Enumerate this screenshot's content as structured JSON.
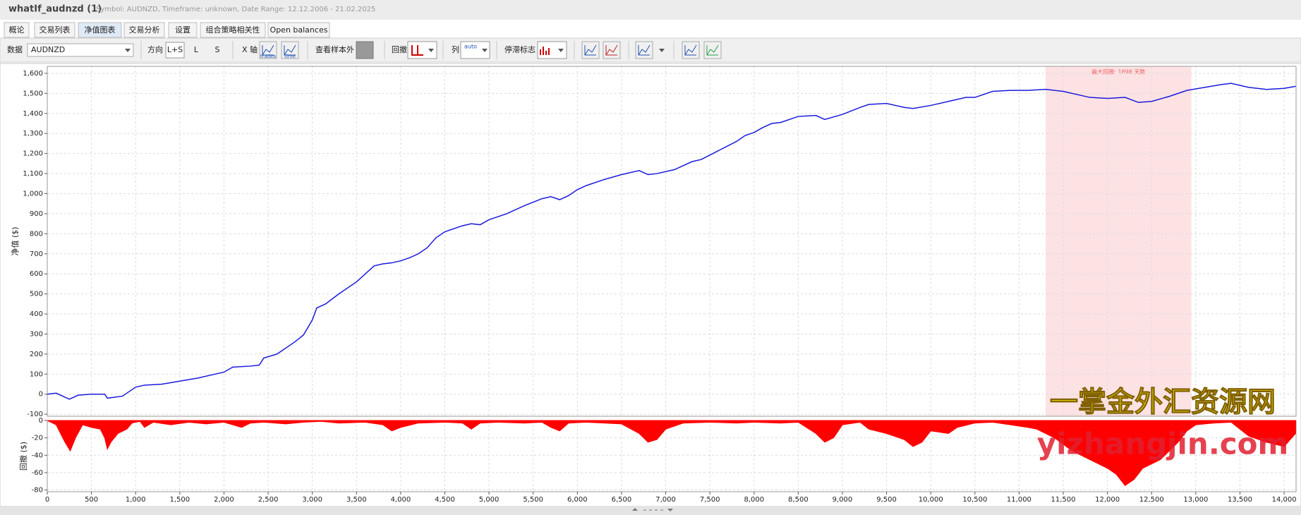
{
  "header": {
    "title": "whatIf_audnzd (1)",
    "subtitle": "Symbol: AUDNZD, Timeframe: unknown, Date Range: 12.12.2006 - 21.02.2025"
  },
  "tabs": [
    "概论",
    "交易列表",
    "净值图表",
    "交易分析",
    "设置",
    "组合策略相关性",
    "Open balances"
  ],
  "toolbar": {
    "data_label": "数据",
    "symbol": "AUDNZD",
    "direction_label": "方向",
    "directions": [
      "L+S",
      "L",
      "S"
    ],
    "x_axis_label": "X 轴",
    "x_modes": [
      "trades",
      "time"
    ],
    "out_of_sample": "查看样本外",
    "drawdown_label": "回撤",
    "column_label": "列",
    "column_mode": "auto",
    "stagnation_label": "停滞标志"
  },
  "watermark": {
    "line1": "一掌金外汇资源网",
    "line2": "yizhangjin.com"
  },
  "chart_data": [
    {
      "type": "line",
      "y_label": "净值 ($)",
      "color": "#1a1adc",
      "grid": true,
      "xlim": [
        0,
        14135
      ],
      "ylim": [
        -110,
        1635
      ],
      "yticks": [
        -100,
        0,
        100,
        200,
        300,
        400,
        500,
        600,
        700,
        800,
        900,
        {
          "value": 1000,
          "label": "1,000"
        },
        {
          "value": 1100,
          "label": "1,100"
        },
        {
          "value": 1200,
          "label": "1,200"
        },
        {
          "value": 1300,
          "label": "1,300"
        },
        {
          "value": 1400,
          "label": "1,400"
        },
        {
          "value": 1500,
          "label": "1,500"
        },
        {
          "value": 1600,
          "label": "1,600"
        }
      ],
      "highlight": {
        "xlim": [
          11300,
          12950
        ],
        "label": "最大回撤: 1898 天数",
        "color": "#fde2e4"
      },
      "x": [
        0,
        100,
        250,
        350,
        500,
        650,
        680,
        850,
        1000,
        1100,
        1300,
        1500,
        1700,
        1900,
        2000,
        2100,
        2300,
        2400,
        2450,
        2600,
        2800,
        2900,
        3000,
        3050,
        3150,
        3300,
        3500,
        3600,
        3700,
        3800,
        3900,
        4000,
        4100,
        4200,
        4300,
        4400,
        4500,
        4700,
        4800,
        4900,
        5000,
        5200,
        5400,
        5600,
        5700,
        5800,
        5900,
        6000,
        6100,
        6300,
        6500,
        6700,
        6800,
        6900,
        7100,
        7300,
        7400,
        7600,
        7800,
        7900,
        8000,
        8100,
        8200,
        8300,
        8500,
        8700,
        8800,
        9000,
        9200,
        9300,
        9500,
        9700,
        9800,
        10000,
        10200,
        10400,
        10500,
        10700,
        10900,
        11100,
        11300,
        11500,
        11800,
        12000,
        12200,
        12350,
        12500,
        12700,
        12900,
        13100,
        13300,
        13400,
        13600,
        13800,
        14000,
        14130
      ],
      "values": [
        0,
        5,
        -25,
        -5,
        0,
        0,
        -20,
        -10,
        35,
        45,
        50,
        65,
        80,
        100,
        110,
        135,
        140,
        145,
        180,
        200,
        260,
        295,
        370,
        430,
        450,
        500,
        560,
        600,
        640,
        650,
        655,
        665,
        680,
        700,
        730,
        780,
        810,
        840,
        850,
        845,
        870,
        900,
        940,
        975,
        985,
        970,
        990,
        1020,
        1040,
        1070,
        1095,
        1115,
        1095,
        1100,
        1120,
        1160,
        1170,
        1215,
        1260,
        1290,
        1305,
        1330,
        1350,
        1355,
        1385,
        1390,
        1370,
        1395,
        1430,
        1445,
        1450,
        1430,
        1425,
        1440,
        1460,
        1480,
        1480,
        1510,
        1515,
        1515,
        1520,
        1510,
        1480,
        1475,
        1480,
        1455,
        1460,
        1485,
        1515,
        1530,
        1545,
        1550,
        1530,
        1520,
        1525,
        1535
      ]
    },
    {
      "type": "area",
      "y_label": "回撤 ($)",
      "color": "#ff0000",
      "grid": true,
      "xlim": [
        0,
        14135
      ],
      "ylim": [
        -82,
        0
      ],
      "yticks": [
        0,
        -20,
        -40,
        -60,
        -80
      ],
      "xticks": [
        0,
        500,
        {
          "value": 1000,
          "label": "1,000"
        },
        {
          "value": 1500,
          "label": "1,500"
        },
        {
          "value": 2000,
          "label": "2,000"
        },
        {
          "value": 2500,
          "label": "2,500"
        },
        {
          "value": 3000,
          "label": "3,000"
        },
        {
          "value": 3500,
          "label": "3,500"
        },
        {
          "value": 4000,
          "label": "4,000"
        },
        {
          "value": 4500,
          "label": "4,500"
        },
        {
          "value": 5000,
          "label": "5,000"
        },
        {
          "value": 5500,
          "label": "5,500"
        },
        {
          "value": 6000,
          "label": "6,000"
        },
        {
          "value": 6500,
          "label": "6,500"
        },
        {
          "value": 7000,
          "label": "7,000"
        },
        {
          "value": 7500,
          "label": "7,500"
        },
        {
          "value": 8000,
          "label": "8,000"
        },
        {
          "value": 8500,
          "label": "8,500"
        },
        {
          "value": 9000,
          "label": "9,000"
        },
        {
          "value": 9500,
          "label": "9,500"
        },
        {
          "value": 10000,
          "label": "10,000"
        },
        {
          "value": 10500,
          "label": "10,500"
        },
        {
          "value": 11000,
          "label": "11,000"
        },
        {
          "value": 11500,
          "label": "11,500"
        },
        {
          "value": 12000,
          "label": "12,000"
        },
        {
          "value": 12500,
          "label": "12,500"
        },
        {
          "value": 13000,
          "label": "13,000"
        },
        {
          "value": 13500,
          "label": "13,500"
        },
        {
          "value": 14000,
          "label": "14,000"
        }
      ],
      "x": [
        0,
        100,
        200,
        260,
        320,
        400,
        500,
        600,
        650,
        680,
        720,
        800,
        900,
        960,
        1050,
        1100,
        1200,
        1400,
        1600,
        1800,
        2000,
        2200,
        2300,
        2450,
        2700,
        2900,
        3100,
        3300,
        3600,
        3800,
        3900,
        4000,
        4200,
        4500,
        4700,
        4800,
        4900,
        5100,
        5400,
        5600,
        5700,
        5800,
        5900,
        6100,
        6500,
        6700,
        6800,
        6900,
        7000,
        7200,
        7500,
        7800,
        8000,
        8300,
        8500,
        8700,
        8800,
        8900,
        9000,
        9200,
        9300,
        9500,
        9700,
        9800,
        9900,
        10000,
        10200,
        10300,
        10500,
        10700,
        10900,
        11100,
        11200,
        11400,
        11600,
        11800,
        12000,
        12100,
        12200,
        12300,
        12400,
        12600,
        12800,
        12900,
        13000,
        13200,
        13400,
        13500,
        13600,
        13800,
        14000,
        14130
      ],
      "values": [
        0,
        -5,
        -25,
        -35,
        -20,
        -5,
        -8,
        -10,
        -20,
        -33,
        -25,
        -15,
        -10,
        -3,
        -1,
        -8,
        -2,
        -5,
        -2,
        -4,
        -2,
        -8,
        -3,
        -2,
        -4,
        -2,
        -1,
        -3,
        -2,
        -5,
        -12,
        -8,
        -3,
        -2,
        -3,
        -10,
        -3,
        -2,
        -3,
        -2,
        -8,
        -12,
        -3,
        -2,
        -4,
        -15,
        -25,
        -22,
        -10,
        -3,
        -2,
        -3,
        -2,
        -3,
        -2,
        -15,
        -25,
        -20,
        -5,
        -2,
        -10,
        -15,
        -22,
        -30,
        -25,
        -12,
        -15,
        -8,
        -3,
        -2,
        -5,
        -8,
        -10,
        -20,
        -35,
        -45,
        -55,
        -62,
        -75,
        -68,
        -55,
        -45,
        -25,
        -12,
        -5,
        -3,
        -2,
        -10,
        -18,
        -25,
        -30,
        -15
      ]
    }
  ]
}
